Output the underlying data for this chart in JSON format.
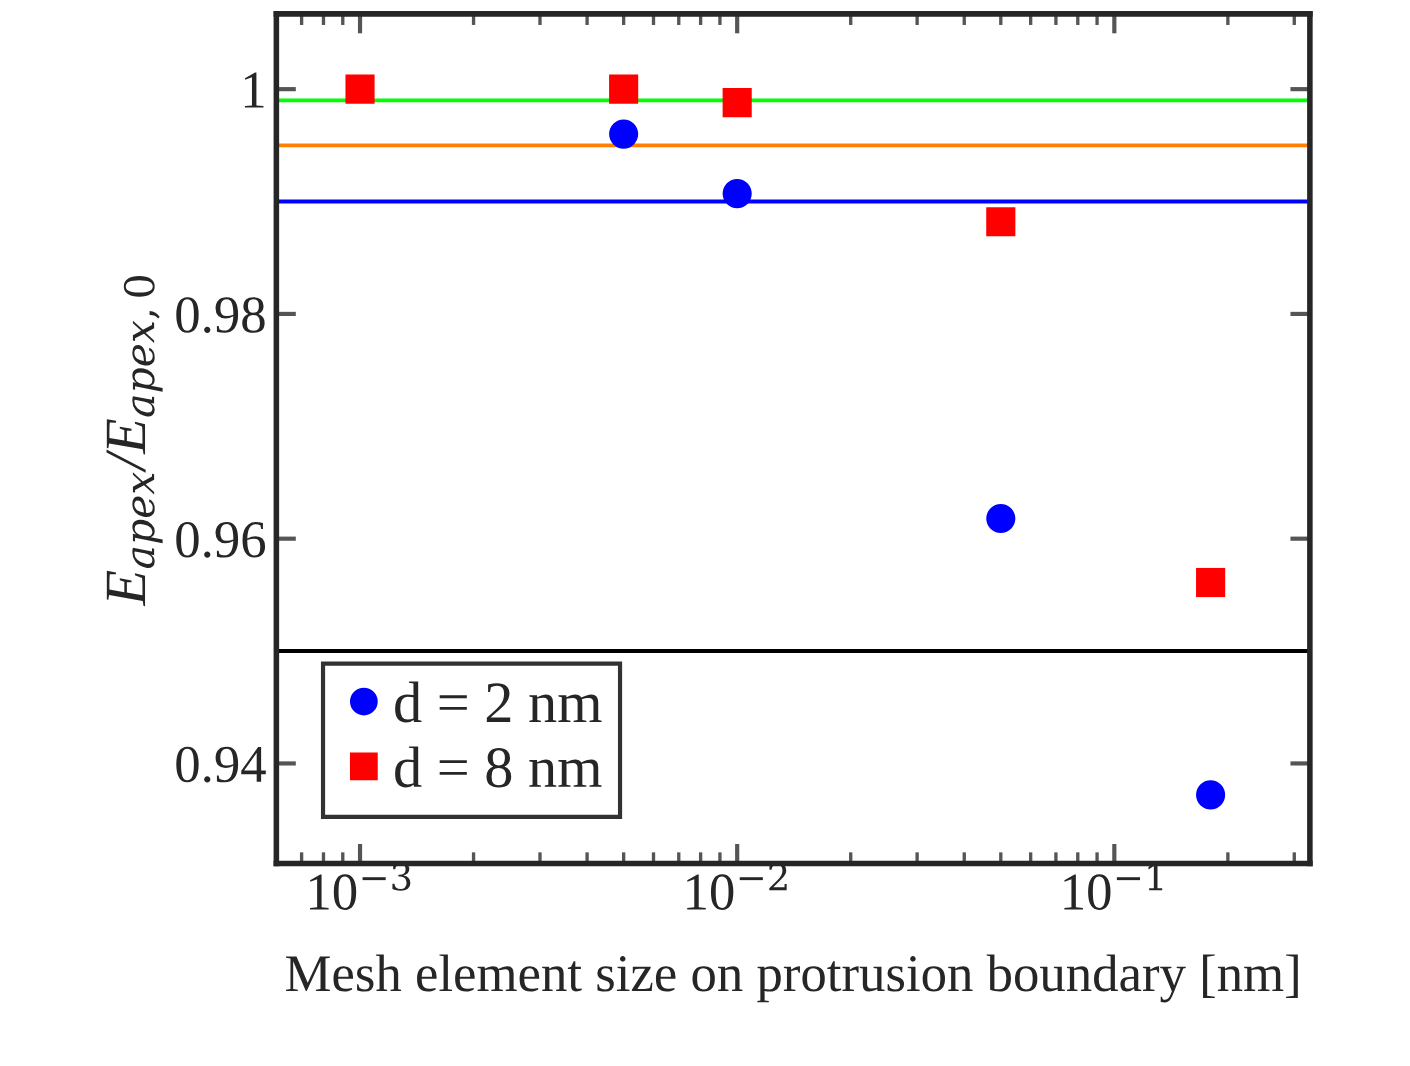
{
  "chart_data": {
    "type": "scatter",
    "xlabel": "Mesh element size on protrusion boundary [nm]",
    "ylabel": "E$_{apex}$/E$_{apex,0}$",
    "log": "x",
    "xlim": [
      0.0006,
      0.33
    ],
    "xticks": [
      {
        "value": 0.001,
        "label": "10$^{−3}$"
      },
      {
        "value": 0.01,
        "label": "10$^{−2}$"
      },
      {
        "value": 0.1,
        "label": "10$^{−1}$"
      }
    ],
    "ylim": [
      0.9311,
      1.0067
    ],
    "yticks": [
      0.94,
      0.96,
      0.98,
      1
    ],
    "grid": false,
    "legend": "bottom left",
    "series": [
      {
        "name": "d = 2 nm",
        "color": "#0000ff",
        "marker": "circle",
        "x": [
          0.005,
          0.01,
          0.05,
          0.18
        ],
        "values": [
          0.996,
          0.9907,
          0.9618,
          0.9372
        ]
      },
      {
        "name": "d = 8 nm",
        "color": "#ff0000",
        "marker": "square",
        "x": [
          0.001,
          0.005,
          0.01,
          0.05,
          0.18
        ],
        "values": [
          1.0,
          1.0,
          0.9988,
          0.9882,
          0.9561
        ]
      }
    ],
    "ref_lines": [
      {
        "axis": "y",
        "value": 0.999,
        "color": "#00ff00"
      },
      {
        "axis": "y",
        "value": 0.995,
        "color": "#ff8000"
      },
      {
        "axis": "y",
        "value": 0.99,
        "color": "#0000ff"
      },
      {
        "axis": "y",
        "value": 0.95,
        "color": "#000000"
      }
    ]
  }
}
